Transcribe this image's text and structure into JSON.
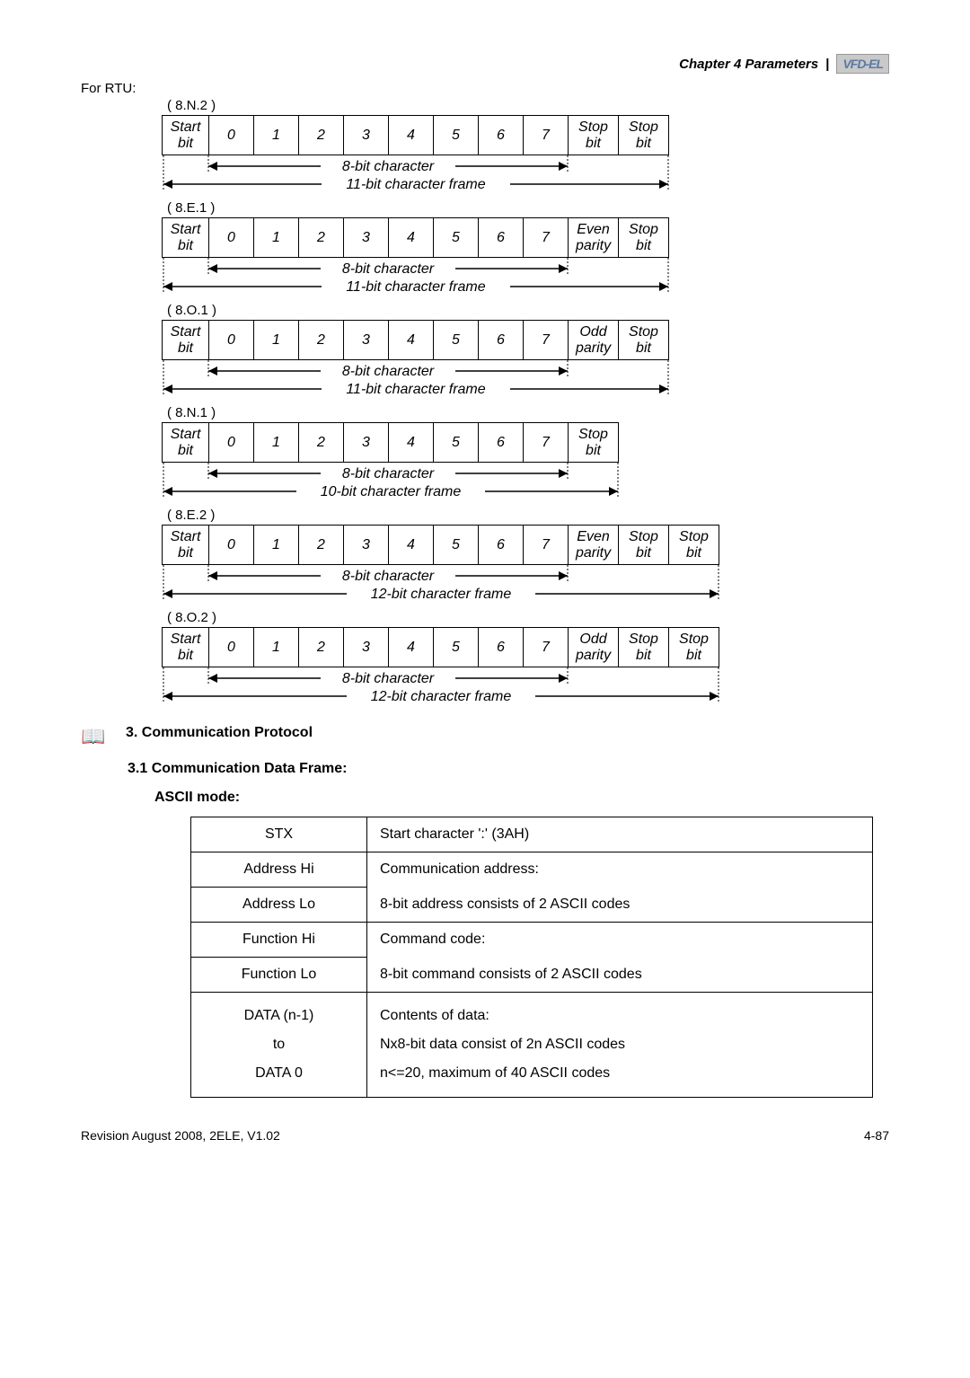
{
  "header": {
    "chapter": "Chapter 4 Parameters",
    "separator": "|",
    "badge": "VFD-EL"
  },
  "forRTU": "For RTU:",
  "frames": [
    {
      "format": "( 8.N.2 )",
      "cells": [
        "Start bit",
        "0",
        "1",
        "2",
        "3",
        "4",
        "5",
        "6",
        "7",
        "Stop bit",
        "Stop bit"
      ],
      "charLabel": "8-bit character",
      "frameLabel": "11-bit character frame",
      "bitCount": 8,
      "extCount": 2
    },
    {
      "format": "( 8.E.1 )",
      "cells": [
        "Start bit",
        "0",
        "1",
        "2",
        "3",
        "4",
        "5",
        "6",
        "7",
        "Even parity",
        "Stop bit"
      ],
      "charLabel": "8-bit character",
      "frameLabel": "11-bit character frame",
      "bitCount": 8,
      "extCount": 2
    },
    {
      "format": "( 8.O.1 )",
      "cells": [
        "Start bit",
        "0",
        "1",
        "2",
        "3",
        "4",
        "5",
        "6",
        "7",
        "Odd parity",
        "Stop bit"
      ],
      "charLabel": "8-bit character",
      "frameLabel": "11-bit character frame",
      "bitCount": 8,
      "extCount": 2
    },
    {
      "format": "( 8.N.1 )",
      "cells": [
        "Start bit",
        "0",
        "1",
        "2",
        "3",
        "4",
        "5",
        "6",
        "7",
        "Stop bit"
      ],
      "charLabel": "8-bit character",
      "frameLabel": "10-bit character frame",
      "bitCount": 8,
      "extCount": 1
    },
    {
      "format": "( 8.E.2 )",
      "cells": [
        "Start bit",
        "0",
        "1",
        "2",
        "3",
        "4",
        "5",
        "6",
        "7",
        "Even parity",
        "Stop bit",
        "Stop bit"
      ],
      "charLabel": "8-bit character",
      "frameLabel": "12-bit character frame",
      "bitCount": 8,
      "extCount": 3
    },
    {
      "format": "( 8.O.2 )",
      "cells": [
        "Start bit",
        "0",
        "1",
        "2",
        "3",
        "4",
        "5",
        "6",
        "7",
        "Odd parity",
        "Stop bit",
        "Stop bit"
      ],
      "charLabel": "8-bit character",
      "frameLabel": "12-bit character frame",
      "bitCount": 8,
      "extCount": 3
    }
  ],
  "section3": "3. Communication Protocol",
  "section31": "3.1 Communication Data Frame:",
  "asciiMode": "ASCII mode:",
  "asciiTable": {
    "rows": [
      {
        "l": "STX",
        "r": "Start character ':' (3AH)",
        "merge": false
      },
      {
        "l": "Address Hi",
        "r": "Communication address:",
        "nobot": true
      },
      {
        "l": "Address Lo",
        "r": "8-bit address consists of 2 ASCII codes",
        "notop": true
      },
      {
        "l": "Function Hi",
        "r": "Command code:",
        "nobot": true
      },
      {
        "l": "Function Lo",
        "r": "8-bit command consists of 2 ASCII codes",
        "notop": true
      },
      {
        "l": "DATA (n-1)\nto\nDATA 0",
        "r": "Contents of data:\nNx8-bit data consist of 2n ASCII codes\nn<=20, maximum of 40 ASCII codes",
        "multi": true
      }
    ]
  },
  "footer": {
    "left": "Revision August 2008, 2ELE, V1.02",
    "right": "4-87"
  },
  "style": {
    "cellWidths": {
      "start": 52,
      "bit": 50,
      "ext": 56
    },
    "arrowColor": "#000000"
  }
}
